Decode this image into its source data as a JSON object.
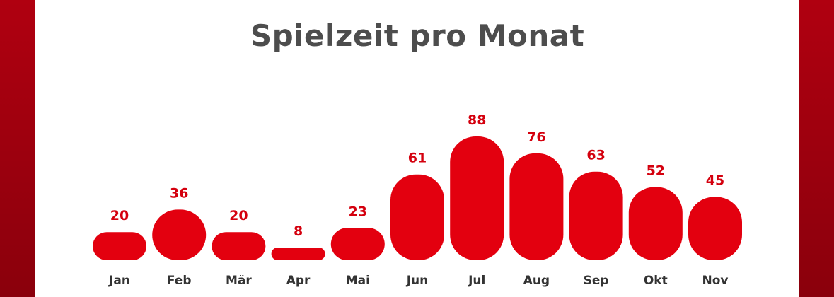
{
  "colors": {
    "bar": "#e3000f",
    "value_label": "#d4000e",
    "category_label": "#333333",
    "title": "#4d4d4d"
  },
  "chart_data": {
    "type": "bar",
    "title": "Spielzeit pro Monat",
    "xlabel": "",
    "ylabel": "",
    "categories": [
      "Jan",
      "Feb",
      "Mär",
      "Apr",
      "Mai",
      "Jun",
      "Jul",
      "Aug",
      "Sep",
      "Okt",
      "Nov"
    ],
    "values": [
      20,
      36,
      20,
      8,
      23,
      61,
      88,
      76,
      63,
      52,
      45
    ],
    "grid": false,
    "legend": "none"
  }
}
